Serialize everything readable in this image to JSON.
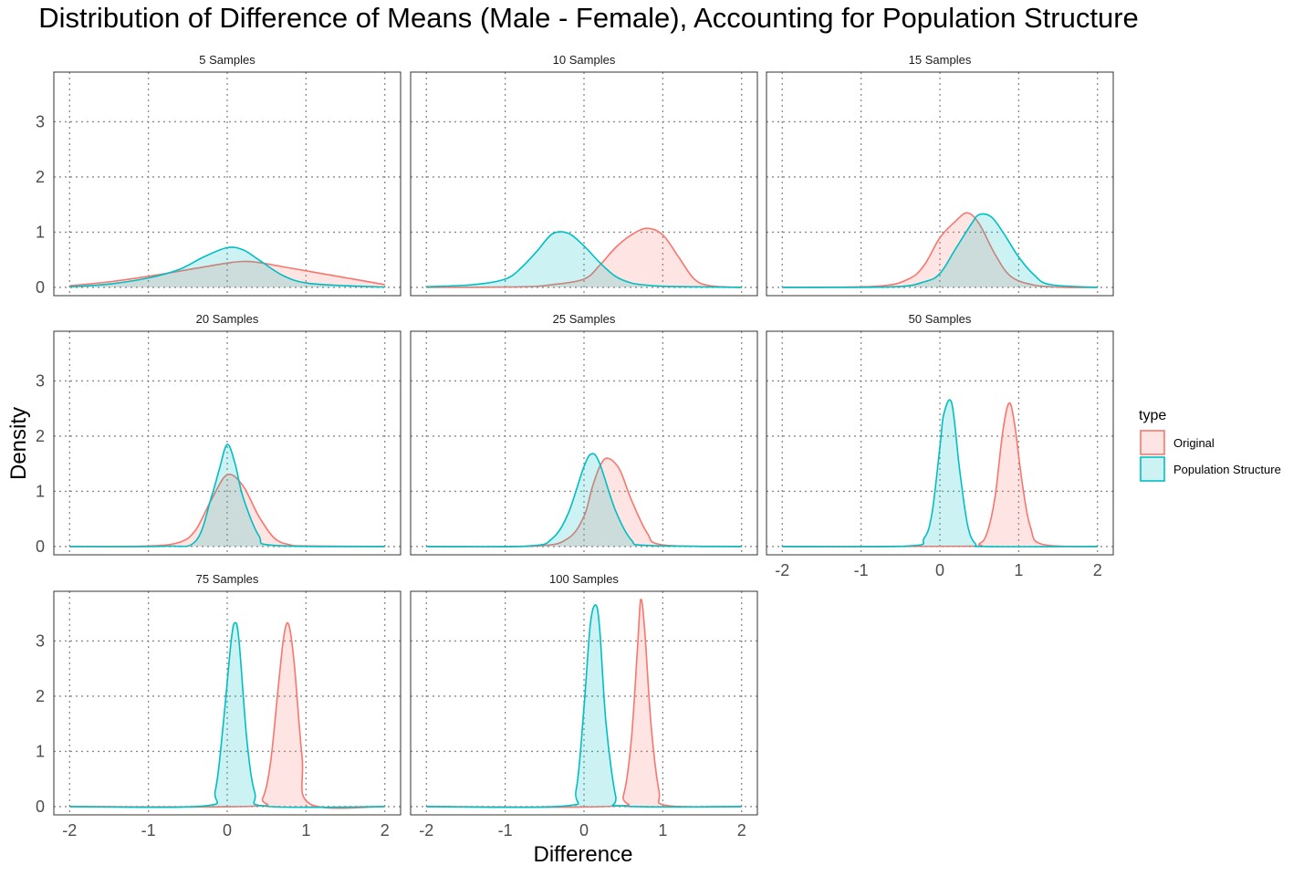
{
  "chart_data": {
    "type": "area",
    "title": "Distribution of Difference of Means (Male - Female), Accounting for Population Structure",
    "xlabel": "Difference",
    "ylabel": "Density",
    "xlim": [
      -2.2,
      2.2
    ],
    "ylim": [
      -0.15,
      3.9
    ],
    "x_ticks": [
      -2,
      -1,
      0,
      1,
      2
    ],
    "y_ticks": [
      0,
      1,
      2,
      3
    ],
    "grid": "dotted major gridlines",
    "legend": {
      "title": "type",
      "position": "right",
      "entries": [
        {
          "name": "Original",
          "line": "#F8766D",
          "fill": "#F8766D"
        },
        {
          "name": "Population Structure",
          "line": "#00BFC4",
          "fill": "#00BFC4"
        }
      ]
    },
    "panels": [
      {
        "label": "5  Samples",
        "series": [
          {
            "name": "Original",
            "x": [
              -2,
              -1.5,
              -1,
              -0.5,
              0,
              0.2,
              0.4,
              0.8,
              1.2,
              1.6,
              2
            ],
            "y": [
              0.03,
              0.1,
              0.2,
              0.32,
              0.44,
              0.47,
              0.45,
              0.35,
              0.25,
              0.15,
              0.05
            ]
          },
          {
            "name": "Population Structure",
            "x": [
              -2,
              -1.5,
              -1,
              -0.6,
              -0.3,
              0,
              0.2,
              0.4,
              0.7,
              1,
              1.5,
              2
            ],
            "y": [
              0.01,
              0.06,
              0.17,
              0.33,
              0.55,
              0.72,
              0.68,
              0.5,
              0.22,
              0.08,
              0.03,
              0.005
            ]
          }
        ]
      },
      {
        "label": "10  Samples",
        "series": [
          {
            "name": "Original",
            "x": [
              -2,
              -0.8,
              -0.4,
              0,
              0.2,
              0.4,
              0.6,
              0.8,
              1.0,
              1.2,
              1.4,
              1.6,
              2
            ],
            "y": [
              0,
              0.01,
              0.05,
              0.15,
              0.4,
              0.72,
              0.95,
              1.07,
              0.95,
              0.55,
              0.15,
              0.03,
              0
            ]
          },
          {
            "name": "Population Structure",
            "x": [
              -2,
              -1.4,
              -1,
              -0.8,
              -0.6,
              -0.4,
              -0.2,
              0,
              0.2,
              0.4,
              0.6,
              0.8,
              1,
              1.4,
              2
            ],
            "y": [
              0.01,
              0.05,
              0.15,
              0.35,
              0.65,
              0.97,
              0.98,
              0.75,
              0.45,
              0.2,
              0.08,
              0.04,
              0.02,
              0.01,
              0
            ]
          }
        ]
      },
      {
        "label": "15  Samples",
        "series": [
          {
            "name": "Original",
            "x": [
              -2,
              -0.8,
              -0.4,
              -0.2,
              0,
              0.2,
              0.35,
              0.5,
              0.7,
              0.9,
              1.2,
              1.6,
              2
            ],
            "y": [
              0,
              0.02,
              0.15,
              0.4,
              0.9,
              1.2,
              1.35,
              1.15,
              0.6,
              0.2,
              0.04,
              0,
              0
            ]
          },
          {
            "name": "Population Structure",
            "x": [
              -2,
              -0.6,
              -0.2,
              0,
              0.2,
              0.4,
              0.5,
              0.65,
              0.8,
              1,
              1.2,
              1.4,
              2
            ],
            "y": [
              0,
              0.01,
              0.1,
              0.25,
              0.7,
              1.15,
              1.32,
              1.28,
              1.0,
              0.55,
              0.22,
              0.05,
              0
            ]
          }
        ]
      },
      {
        "label": "20  Samples",
        "series": [
          {
            "name": "Original",
            "x": [
              -2,
              -1,
              -0.6,
              -0.4,
              -0.2,
              0,
              0.2,
              0.4,
              0.6,
              0.8,
              1,
              2
            ],
            "y": [
              0,
              0.01,
              0.08,
              0.3,
              0.85,
              1.3,
              1.1,
              0.55,
              0.15,
              0.03,
              0.01,
              0
            ]
          },
          {
            "name": "Population Structure",
            "x": [
              -2,
              -0.8,
              -0.4,
              -0.2,
              -0.1,
              0,
              0.1,
              0.2,
              0.4,
              0.6,
              2
            ],
            "y": [
              0,
              0.005,
              0.1,
              0.9,
              1.4,
              1.85,
              1.5,
              0.9,
              0.2,
              0.02,
              0
            ]
          }
        ]
      },
      {
        "label": "25  Samples",
        "series": [
          {
            "name": "Original",
            "x": [
              -2,
              -0.6,
              -0.2,
              0,
              0.1,
              0.2,
              0.3,
              0.45,
              0.6,
              0.8,
              1,
              2
            ],
            "y": [
              0,
              0.01,
              0.15,
              0.55,
              1.05,
              1.45,
              1.6,
              1.4,
              0.85,
              0.25,
              0.03,
              0
            ]
          },
          {
            "name": "Population Structure",
            "x": [
              -2,
              -0.7,
              -0.4,
              -0.2,
              0,
              0.1,
              0.2,
              0.4,
              0.6,
              0.8,
              2
            ],
            "y": [
              0,
              0.01,
              0.15,
              0.6,
              1.45,
              1.68,
              1.5,
              0.65,
              0.12,
              0.02,
              0
            ]
          }
        ]
      },
      {
        "label": "50  Samples",
        "series": [
          {
            "name": "Original",
            "x": [
              -2,
              0.3,
              0.5,
              0.6,
              0.7,
              0.8,
              0.88,
              0.95,
              1.05,
              1.15,
              1.3,
              2
            ],
            "y": [
              0,
              0.005,
              0.05,
              0.25,
              0.9,
              2.1,
              2.6,
              2.2,
              1.1,
              0.35,
              0.04,
              0
            ]
          },
          {
            "name": "Population Structure",
            "x": [
              -2,
              -0.4,
              -0.2,
              -0.1,
              0,
              0.05,
              0.15,
              0.25,
              0.35,
              0.45,
              0.6,
              2
            ],
            "y": [
              0,
              0.01,
              0.15,
              0.6,
              1.8,
              2.4,
              2.6,
              1.4,
              0.4,
              0.05,
              0,
              0
            ]
          }
        ]
      },
      {
        "label": "75  Samples",
        "series": [
          {
            "name": "Original",
            "x": [
              -2,
              0.3,
              0.45,
              0.55,
              0.65,
              0.72,
              0.78,
              0.85,
              0.95,
              1.05,
              2
            ],
            "y": [
              0,
              0.005,
              0.15,
              0.8,
              2.2,
              3.1,
              3.3,
              2.6,
              0.9,
              0.05,
              0
            ]
          },
          {
            "name": "Population Structure",
            "x": [
              -2,
              -0.3,
              -0.15,
              -0.05,
              0.05,
              0.1,
              0.15,
              0.25,
              0.35,
              0.5,
              2
            ],
            "y": [
              0,
              0.01,
              0.3,
              1.5,
              3.0,
              3.33,
              3.0,
              1.2,
              0.25,
              0.005,
              0
            ]
          }
        ]
      },
      {
        "label": "100  Samples",
        "series": [
          {
            "name": "Original",
            "x": [
              -2,
              0.35,
              0.5,
              0.6,
              0.68,
              0.72,
              0.77,
              0.85,
              0.95,
              1.05,
              2
            ],
            "y": [
              0,
              0.005,
              0.2,
              1.2,
              2.9,
              3.75,
              3.2,
              1.5,
              0.3,
              0.02,
              0
            ]
          },
          {
            "name": "Population Structure",
            "x": [
              -2,
              -0.25,
              -0.1,
              0,
              0.08,
              0.15,
              0.2,
              0.28,
              0.4,
              0.5,
              2
            ],
            "y": [
              0,
              0.01,
              0.3,
              1.8,
              3.3,
              3.65,
              3.2,
              1.5,
              0.2,
              0.01,
              0
            ]
          }
        ]
      }
    ]
  }
}
